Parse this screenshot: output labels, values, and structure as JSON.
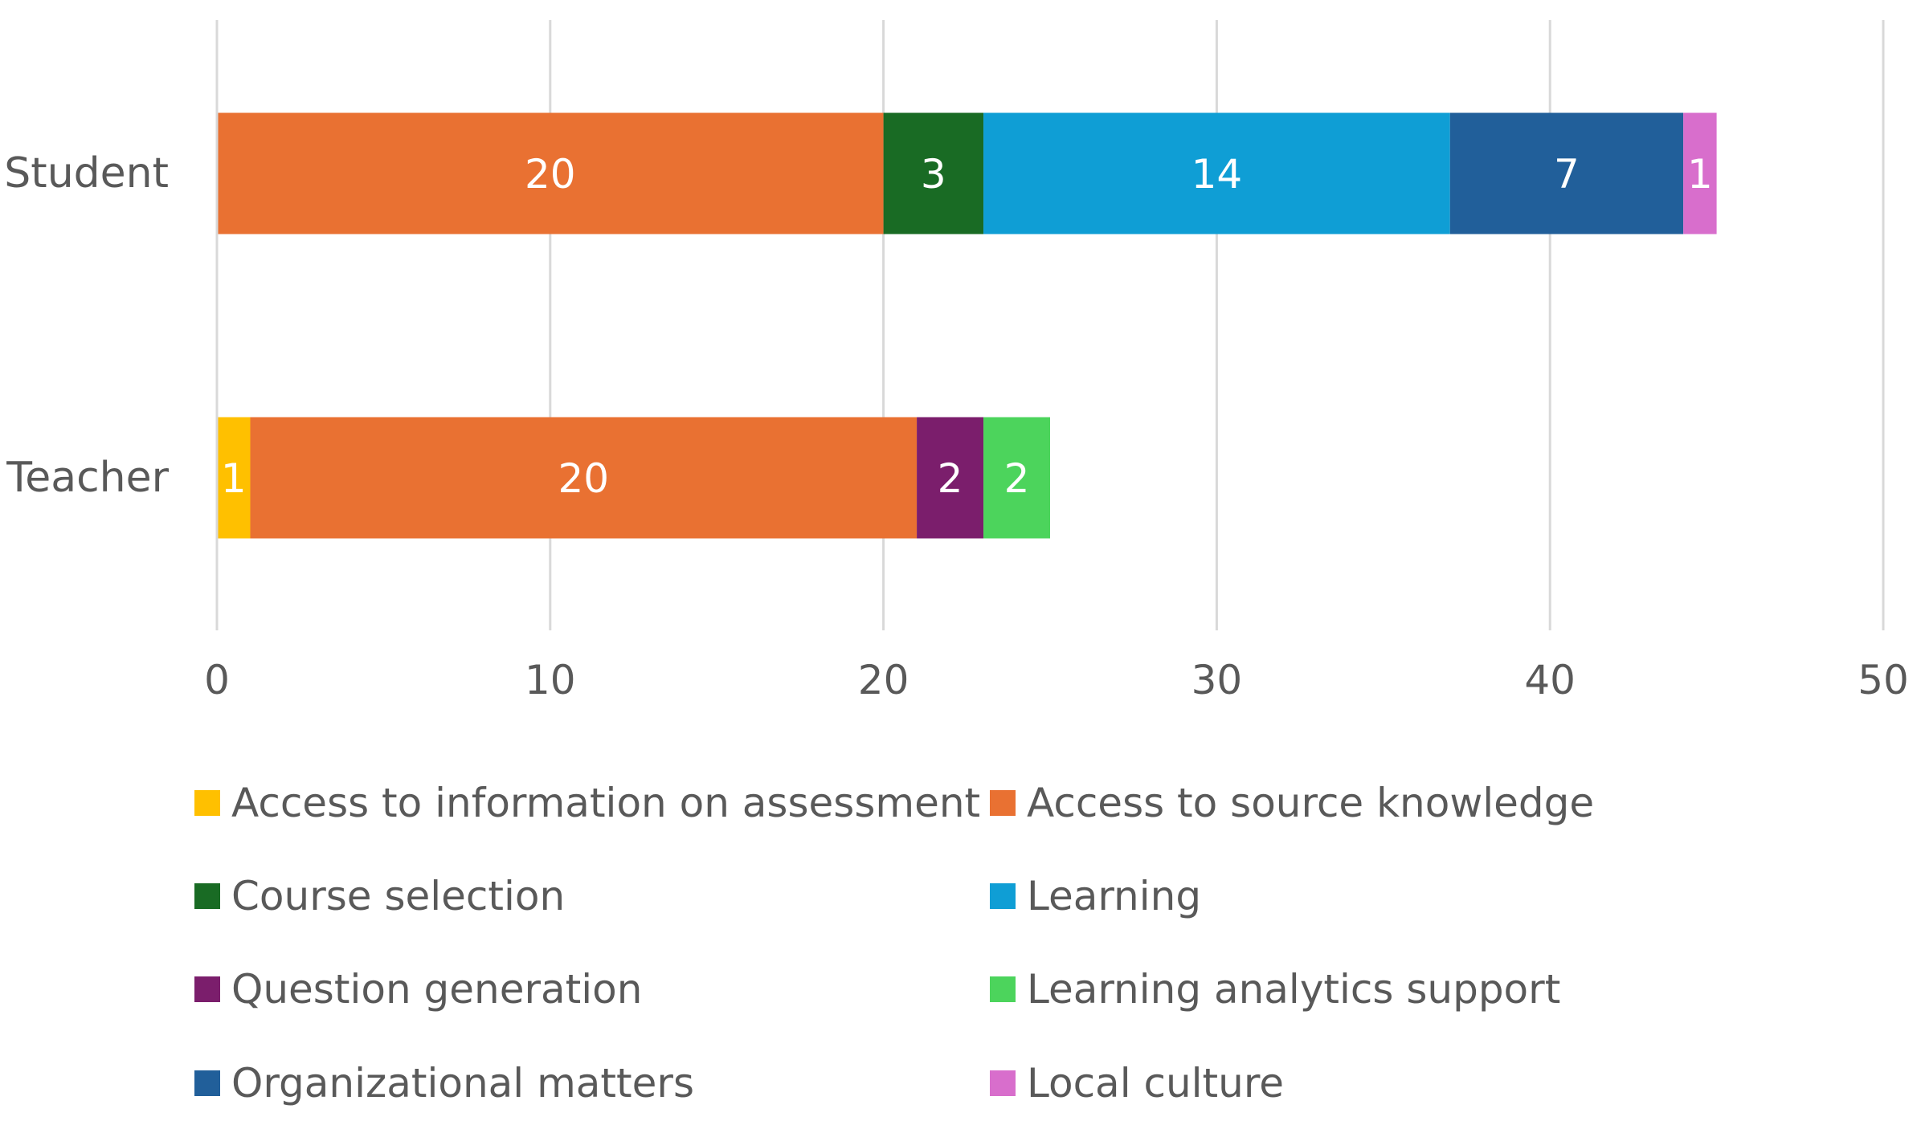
{
  "chart_data": {
    "type": "bar",
    "orientation": "horizontal",
    "stacked": true,
    "title": "",
    "xlabel": "",
    "ylabel": "",
    "xlim": [
      0,
      50
    ],
    "x_ticks": [
      "0",
      "10",
      "20",
      "30",
      "40",
      "50"
    ],
    "grid": "vertical",
    "legend_position": "bottom",
    "categories": [
      "Student",
      "Teacher"
    ],
    "series": [
      {
        "name": "Access to information on assessment",
        "color": "#FFC000",
        "values": [
          0,
          1
        ]
      },
      {
        "name": "Access to source knowledge",
        "color": "#E97132",
        "values": [
          20,
          20
        ]
      },
      {
        "name": "Course selection",
        "color": "#196B24",
        "values": [
          3,
          0
        ]
      },
      {
        "name": "Learning",
        "color": "#0F9ED5",
        "values": [
          14,
          0
        ]
      },
      {
        "name": "Question generation",
        "color": "#7B1E6C",
        "values": [
          0,
          2
        ]
      },
      {
        "name": "Learning analytics support",
        "color": "#4CD45C",
        "values": [
          0,
          2
        ]
      },
      {
        "name": "Organizational matters",
        "color": "#215F9A",
        "values": [
          7,
          0
        ]
      },
      {
        "name": "Local culture",
        "color": "#D86ECC",
        "values": [
          1,
          0
        ]
      }
    ],
    "stack_order": [
      "Access to information on assessment",
      "Access to source knowledge",
      "Course selection",
      "Learning",
      "Question generation",
      "Learning analytics support",
      "Organizational matters",
      "Local culture"
    ],
    "data_labels": true
  }
}
